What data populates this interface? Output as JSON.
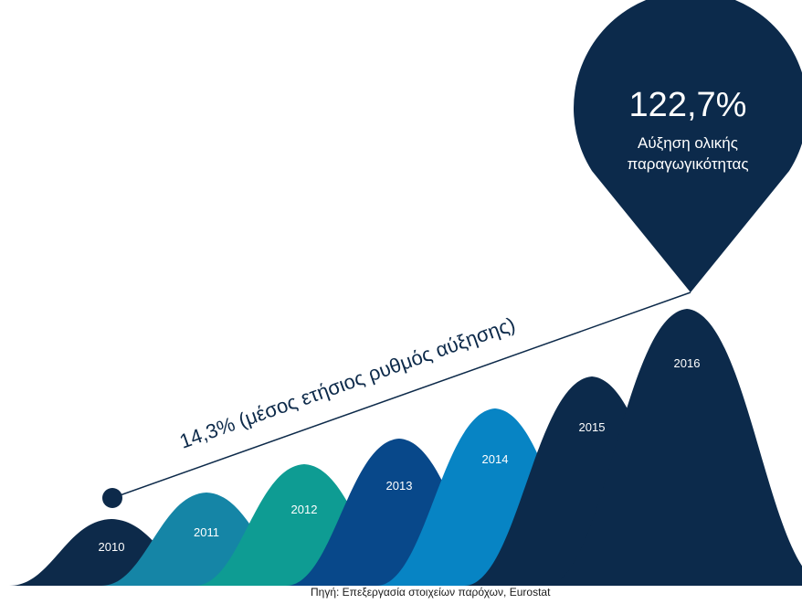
{
  "chart_data": {
    "type": "area",
    "categories": [
      "2010",
      "2011",
      "2012",
      "2013",
      "2014",
      "2015",
      "2016"
    ],
    "colors": [
      "#0d2a4a",
      "#1585a6",
      "#0e9c93",
      "#08488a",
      "#0784c4",
      "#0c2a4b",
      "#0c2a4b"
    ],
    "trend_label": "14,3% (μέσος ετήσιος ρυθμός αύξησης)",
    "callout": {
      "value": "122,7%",
      "caption_line1": "Αύξηση ολικής",
      "caption_line2": "παραγωγικότητας"
    },
    "source": "Πηγή: Επεξεργασία στοιχείων παρόχων, Eurostat"
  }
}
